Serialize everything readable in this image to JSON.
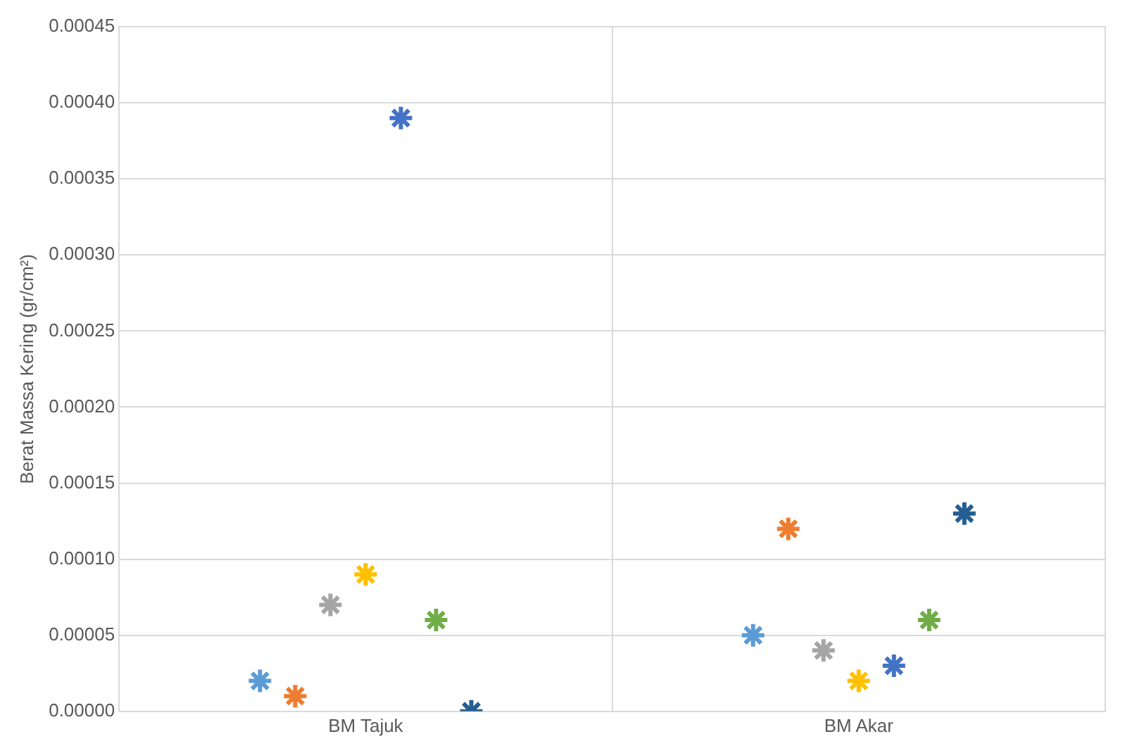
{
  "chart_data": {
    "type": "scatter",
    "ylabel": "Berat Massa Kering (gr/cm²)",
    "categories": [
      "BM Tajuk",
      "BM Akar"
    ],
    "series": [
      {
        "color": "#5b9bd5",
        "values": [
          2e-05,
          5e-05
        ]
      },
      {
        "color": "#ed7d31",
        "values": [
          1e-05,
          0.00012
        ]
      },
      {
        "color": "#a5a5a5",
        "values": [
          7e-05,
          4e-05
        ]
      },
      {
        "color": "#ffc000",
        "values": [
          9e-05,
          2e-05
        ]
      },
      {
        "color": "#4472c4",
        "values": [
          0.00039,
          3e-05
        ]
      },
      {
        "color": "#70ad47",
        "values": [
          6e-05,
          6e-05
        ]
      },
      {
        "color": "#255e91",
        "values": [
          0,
          0.00013
        ]
      }
    ],
    "ylim": [
      0,
      0.00045
    ],
    "yticks": [
      {
        "value": 0,
        "label": "0.00000"
      },
      {
        "value": 5e-05,
        "label": "0.00005"
      },
      {
        "value": 0.0001,
        "label": "0.00010"
      },
      {
        "value": 0.00015,
        "label": "0.00015"
      },
      {
        "value": 0.0002,
        "label": "0.00020"
      },
      {
        "value": 0.00025,
        "label": "0.00025"
      },
      {
        "value": 0.0003,
        "label": "0.00030"
      },
      {
        "value": 0.00035,
        "label": "0.00035"
      },
      {
        "value": 0.0004,
        "label": "0.00040"
      },
      {
        "value": 0.00045,
        "label": "0.00045"
      }
    ],
    "grid": true,
    "marker": "cross"
  }
}
